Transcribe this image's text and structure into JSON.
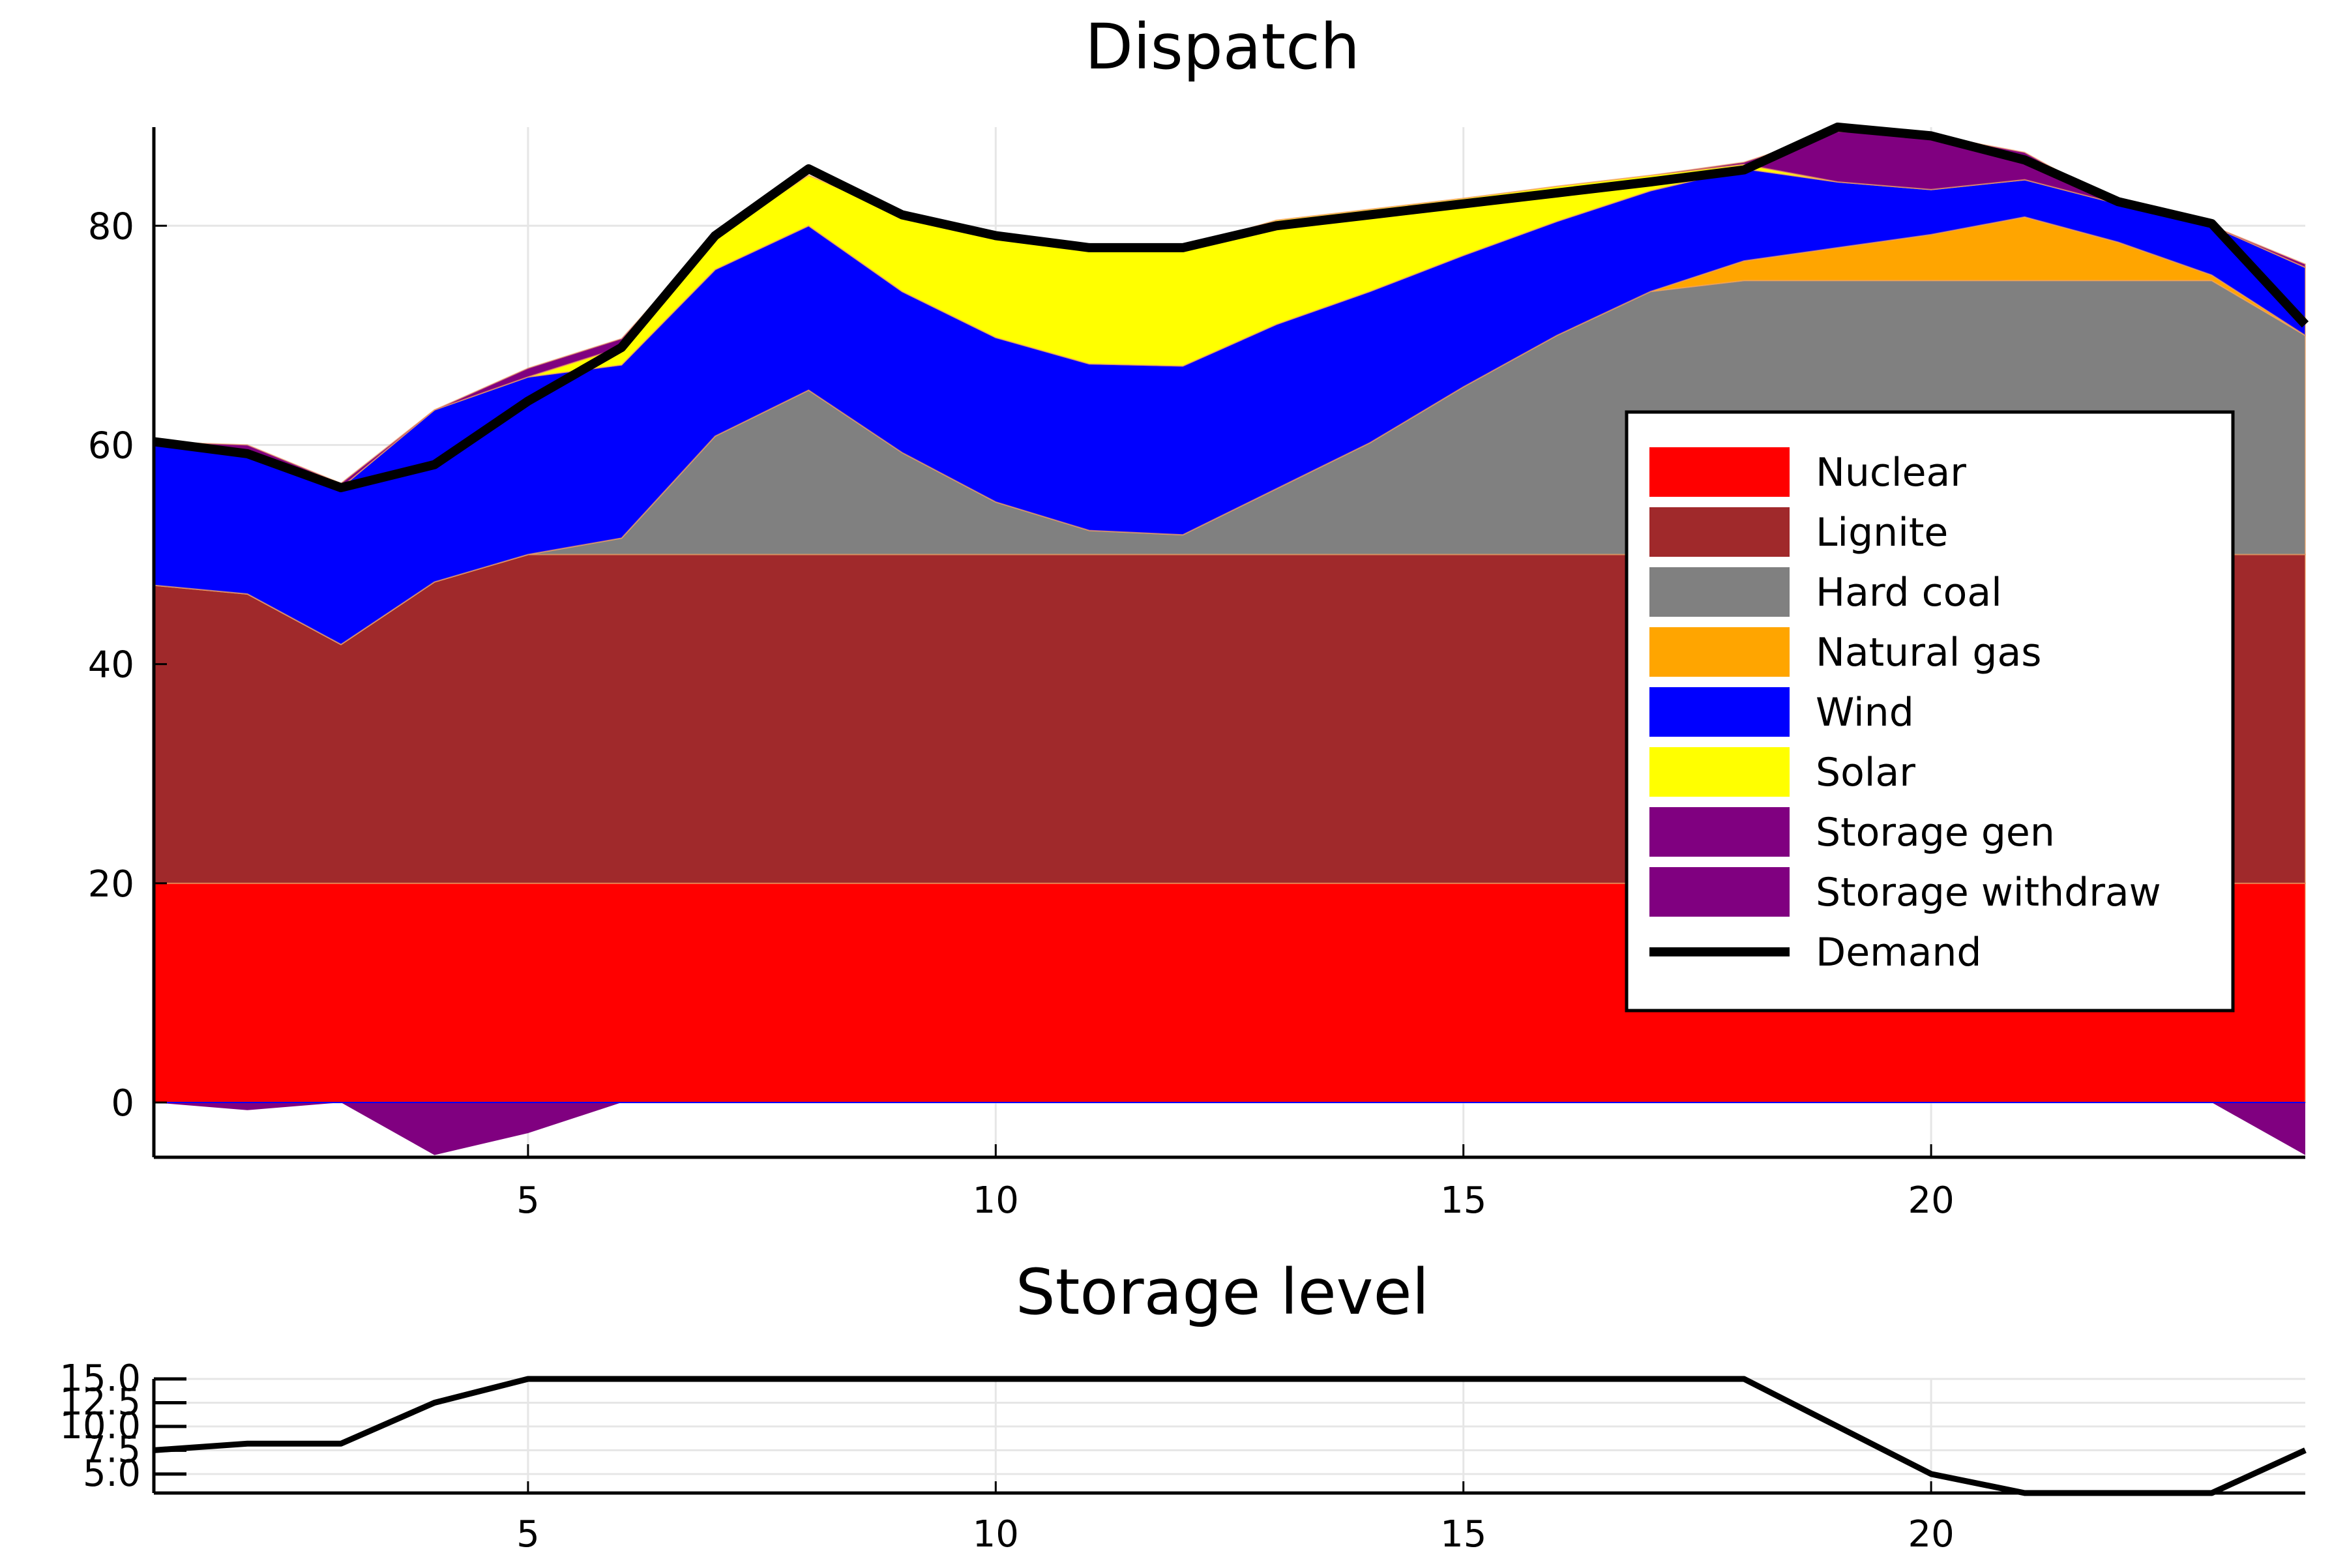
{
  "chart_data": [
    {
      "type": "area",
      "title": "Dispatch",
      "xlabel": "",
      "ylabel": "",
      "xlim": [
        1,
        24
      ],
      "ylim": [
        -5,
        89
      ],
      "x_ticks": [
        "5",
        "10",
        "15",
        "20"
      ],
      "y_ticks": [
        "0",
        "20",
        "40",
        "60",
        "80"
      ],
      "x_tick_values": [
        5,
        10,
        15,
        20
      ],
      "y_tick_values": [
        0,
        20,
        40,
        60,
        80
      ],
      "grid": true,
      "legend_position": "right",
      "x": [
        1,
        2,
        3,
        4,
        5,
        6,
        7,
        8,
        9,
        10,
        11,
        12,
        13,
        14,
        15,
        16,
        17,
        18,
        19,
        20,
        21,
        22,
        23,
        24
      ],
      "series": [
        {
          "name": "Nuclear",
          "color": "#ff0000",
          "values": [
            20,
            20,
            20,
            20,
            20,
            20,
            20,
            20,
            20,
            20,
            20,
            20,
            20,
            20,
            20,
            20,
            20,
            20,
            20,
            20,
            20,
            20,
            20,
            20
          ]
        },
        {
          "name": "Lignite",
          "color": "#a0292b",
          "values": [
            27.2,
            26.4,
            21.8,
            27.5,
            30,
            30,
            30,
            30,
            30,
            30,
            30,
            30,
            30,
            30,
            30,
            30,
            30,
            30,
            30,
            30,
            30,
            30,
            30,
            30
          ]
        },
        {
          "name": "Hard coal",
          "color": "#808080",
          "values": [
            0,
            0,
            0,
            0,
            0,
            1.5,
            10.8,
            15,
            9.3,
            4.8,
            2.2,
            1.8,
            6,
            10.2,
            15.3,
            20,
            24,
            25,
            25,
            25,
            25,
            25,
            25,
            20
          ]
        },
        {
          "name": "Natural gas",
          "color": "#ffa500",
          "values": [
            0,
            0,
            0,
            0,
            0,
            0,
            0,
            0,
            0,
            0,
            0,
            0,
            0,
            0,
            0,
            0,
            0,
            1.8,
            3,
            4.2,
            5.8,
            3.5,
            0.5,
            0
          ]
        },
        {
          "name": "Wind",
          "color": "#0000ff",
          "values": [
            12.8,
            12.8,
            14.3,
            15.7,
            16.2,
            15.8,
            15.2,
            15,
            14.7,
            15,
            15.2,
            15.4,
            15,
            13.8,
            12,
            10.4,
            9.2,
            8.4,
            6,
            4.1,
            3.4,
            3.5,
            4.5,
            6.2
          ]
        },
        {
          "name": "Solar",
          "color": "#ffff00",
          "values": [
            0,
            0,
            0,
            0,
            0,
            1.6,
            3.1,
            4.6,
            7,
            9.3,
            10.7,
            10.8,
            9.5,
            7.5,
            5.2,
            3.2,
            1.4,
            0.4,
            0,
            0,
            0,
            0,
            0,
            0
          ]
        },
        {
          "name": "Storage gen",
          "color": "#800080",
          "values": [
            0.3,
            0.8,
            0.4,
            0,
            0.8,
            0.8,
            0,
            0,
            0,
            0,
            0,
            0,
            0,
            0,
            0,
            0,
            0,
            0.2,
            4.6,
            5,
            2.5,
            0,
            0,
            0.3
          ]
        },
        {
          "name": "Storage withdraw",
          "color": "#800080",
          "values": [
            0,
            -0.7,
            0,
            -4.8,
            -2.8,
            0,
            0,
            0,
            0,
            0,
            0,
            0,
            0,
            0,
            0,
            0,
            0,
            0,
            0,
            0,
            0,
            0,
            0,
            -4.8
          ]
        },
        {
          "name": "Demand",
          "color": "#000000",
          "values": [
            60.3,
            59.2,
            56.1,
            58.2,
            64,
            68.9,
            79.1,
            85.2,
            81,
            79.1,
            78,
            78,
            80,
            81,
            82,
            83,
            84,
            85.1,
            89,
            88.2,
            86,
            82.2,
            80.2,
            71
          ]
        }
      ]
    },
    {
      "type": "line",
      "title": "Storage level",
      "xlabel": "",
      "ylabel": "",
      "xlim": [
        1,
        24
      ],
      "ylim": [
        3,
        15
      ],
      "x_ticks": [
        "5",
        "10",
        "15",
        "20"
      ],
      "y_ticks": [
        "5.0",
        "7.5",
        "10.0",
        "12.5",
        "15.0"
      ],
      "x_tick_values": [
        5,
        10,
        15,
        20
      ],
      "y_tick_values": [
        5,
        7.5,
        10,
        12.5,
        15
      ],
      "grid": true,
      "x": [
        1,
        2,
        3,
        4,
        5,
        6,
        7,
        8,
        9,
        10,
        11,
        12,
        13,
        14,
        15,
        16,
        17,
        18,
        19,
        20,
        21,
        22,
        23,
        24
      ],
      "series": [
        {
          "color": "#000000",
          "values": [
            7.5,
            8.2,
            8.2,
            12.5,
            15,
            15,
            15,
            15,
            15,
            15,
            15,
            15,
            15,
            15,
            15,
            15,
            15,
            15,
            10,
            5,
            3,
            3,
            3,
            7.5
          ]
        }
      ]
    }
  ]
}
